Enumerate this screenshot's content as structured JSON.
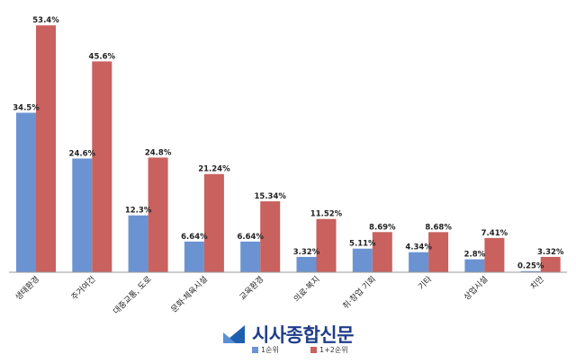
{
  "chart_data": {
    "type": "bar",
    "categories": [
      "생태환경",
      "주거여건",
      "대중교통, 도로",
      "문화·체육시설",
      "교육환경",
      "의료·복지",
      "취·창업 기회",
      "기타",
      "상업시설",
      "치안"
    ],
    "series": [
      {
        "name": "1순위",
        "values": [
          34.5,
          24.6,
          12.3,
          6.64,
          6.64,
          3.32,
          5.11,
          4.34,
          2.8,
          0.25
        ],
        "labels": [
          "34.5%",
          "24.6%",
          "12.3%",
          "6.64%",
          "6.64%",
          "3.32%",
          "5.11%",
          "4.34%",
          "2.8%",
          "0.25%"
        ],
        "color": "#6b93d2"
      },
      {
        "name": "1+2순위",
        "values": [
          53.4,
          45.6,
          24.8,
          21.24,
          15.34,
          11.52,
          8.69,
          8.68,
          7.41,
          3.32
        ],
        "labels": [
          "53.4%",
          "45.6%",
          "24.8%",
          "21.24%",
          "15.34%",
          "11.52%",
          "8.69%",
          "8.68%",
          "7.41%",
          "3.32%"
        ],
        "color": "#c9615e"
      }
    ],
    "title": "",
    "xlabel": "",
    "ylabel": "",
    "ylim": [
      0,
      55
    ],
    "grid": false,
    "legend": "bottom-center"
  },
  "brand": {
    "name": "시사종합신문",
    "logo_icon": "sisa-logo-icon",
    "logo_color": "#1f5fb0"
  }
}
